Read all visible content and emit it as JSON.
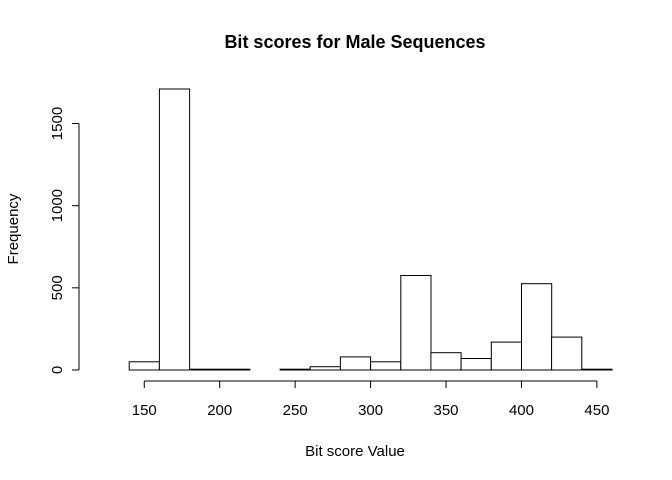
{
  "chart_data": {
    "type": "bar",
    "title": "Bit scores for Male Sequences",
    "xlabel": "Bit score Value",
    "ylabel": "Frequency",
    "bin_width": 20,
    "bins": [
      {
        "start": 120,
        "end": 140,
        "value": 0
      },
      {
        "start": 140,
        "end": 160,
        "value": 50
      },
      {
        "start": 160,
        "end": 180,
        "value": 1710
      },
      {
        "start": 180,
        "end": 200,
        "value": 5
      },
      {
        "start": 200,
        "end": 220,
        "value": 5
      },
      {
        "start": 220,
        "end": 240,
        "value": 0
      },
      {
        "start": 240,
        "end": 260,
        "value": 5
      },
      {
        "start": 260,
        "end": 280,
        "value": 20
      },
      {
        "start": 280,
        "end": 300,
        "value": 80
      },
      {
        "start": 300,
        "end": 320,
        "value": 50
      },
      {
        "start": 320,
        "end": 340,
        "value": 575
      },
      {
        "start": 340,
        "end": 360,
        "value": 105
      },
      {
        "start": 360,
        "end": 380,
        "value": 70
      },
      {
        "start": 380,
        "end": 400,
        "value": 170
      },
      {
        "start": 400,
        "end": 420,
        "value": 525
      },
      {
        "start": 420,
        "end": 440,
        "value": 200
      },
      {
        "start": 440,
        "end": 460,
        "value": 5
      }
    ],
    "xlim": [
      120,
      460
    ],
    "ylim": [
      0,
      1710
    ],
    "x_ticks": [
      150,
      200,
      250,
      300,
      350,
      400,
      450
    ],
    "y_ticks": [
      0,
      500,
      1000,
      1500
    ],
    "grid": false,
    "legend": "none"
  }
}
